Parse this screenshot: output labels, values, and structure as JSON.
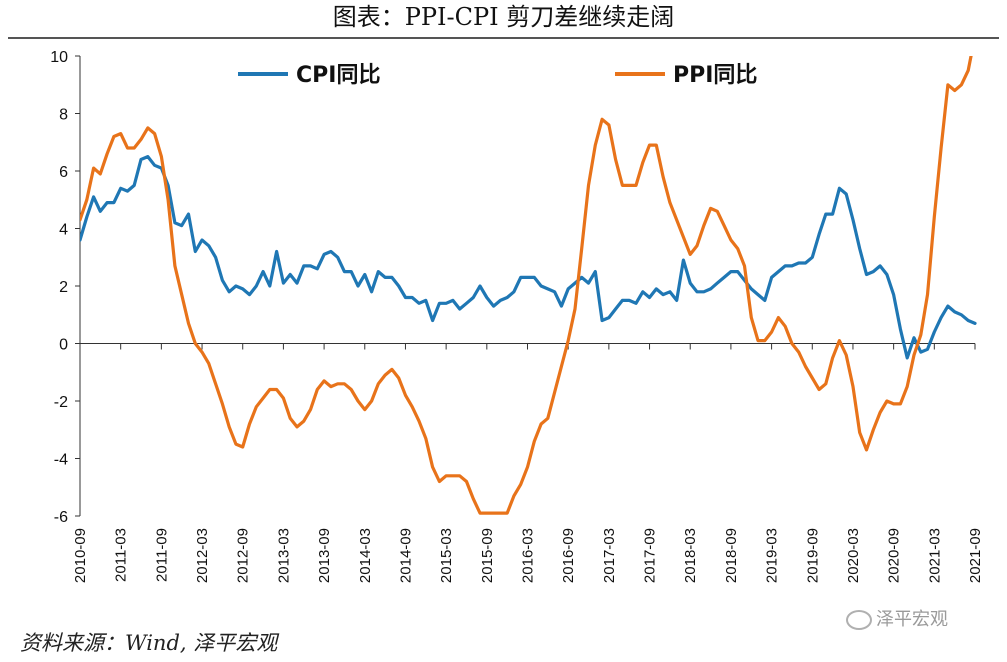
{
  "header": {
    "title": "图表：PPI-CPI 剪刀差继续走阔"
  },
  "footer": {
    "source": "资料来源：Wind, 泽平宏观",
    "watermark": "泽平宏观"
  },
  "chart_data": {
    "type": "line",
    "title": "图表：PPI-CPI 剪刀差继续走阔",
    "ylim": [
      -6,
      10
    ],
    "yticks": [
      "-6",
      "-4",
      "-2",
      "0",
      "2",
      "4",
      "6",
      "8",
      "10"
    ],
    "xlim": [
      "2010-09",
      "2021-09"
    ],
    "xticks": [
      "2010-09",
      "2011-03",
      "2011-09",
      "2012-03",
      "2012-09",
      "2013-03",
      "2013-09",
      "2014-03",
      "2014-09",
      "2015-03",
      "2015-09",
      "2016-03",
      "2016-09",
      "2017-03",
      "2017-09",
      "2018-03",
      "2018-09",
      "2019-03",
      "2019-09",
      "2020-03",
      "2020-09",
      "2021-03",
      "2021-09"
    ],
    "legend_position": "top",
    "series": [
      {
        "name": "CPI同比",
        "color": "#1f77b4",
        "points": [
          [
            "2010-09",
            3.6
          ],
          [
            "2010-10",
            4.4
          ],
          [
            "2010-11",
            5.1
          ],
          [
            "2010-12",
            4.6
          ],
          [
            "2011-01",
            4.9
          ],
          [
            "2011-02",
            4.9
          ],
          [
            "2011-03",
            5.4
          ],
          [
            "2011-04",
            5.3
          ],
          [
            "2011-05",
            5.5
          ],
          [
            "2011-06",
            6.4
          ],
          [
            "2011-07",
            6.5
          ],
          [
            "2011-08",
            6.2
          ],
          [
            "2011-09",
            6.1
          ],
          [
            "2011-10",
            5.5
          ],
          [
            "2011-11",
            4.2
          ],
          [
            "2011-12",
            4.1
          ],
          [
            "2012-01",
            4.5
          ],
          [
            "2012-02",
            3.2
          ],
          [
            "2012-03",
            3.6
          ],
          [
            "2012-04",
            3.4
          ],
          [
            "2012-05",
            3.0
          ],
          [
            "2012-06",
            2.2
          ],
          [
            "2012-07",
            1.8
          ],
          [
            "2012-08",
            2.0
          ],
          [
            "2012-09",
            1.9
          ],
          [
            "2012-10",
            1.7
          ],
          [
            "2012-11",
            2.0
          ],
          [
            "2012-12",
            2.5
          ],
          [
            "2013-01",
            2.0
          ],
          [
            "2013-02",
            3.2
          ],
          [
            "2013-03",
            2.1
          ],
          [
            "2013-04",
            2.4
          ],
          [
            "2013-05",
            2.1
          ],
          [
            "2013-06",
            2.7
          ],
          [
            "2013-07",
            2.7
          ],
          [
            "2013-08",
            2.6
          ],
          [
            "2013-09",
            3.1
          ],
          [
            "2013-10",
            3.2
          ],
          [
            "2013-11",
            3.0
          ],
          [
            "2013-12",
            2.5
          ],
          [
            "2014-01",
            2.5
          ],
          [
            "2014-02",
            2.0
          ],
          [
            "2014-03",
            2.4
          ],
          [
            "2014-04",
            1.8
          ],
          [
            "2014-05",
            2.5
          ],
          [
            "2014-06",
            2.3
          ],
          [
            "2014-07",
            2.3
          ],
          [
            "2014-08",
            2.0
          ],
          [
            "2014-09",
            1.6
          ],
          [
            "2014-10",
            1.6
          ],
          [
            "2014-11",
            1.4
          ],
          [
            "2014-12",
            1.5
          ],
          [
            "2015-01",
            0.8
          ],
          [
            "2015-02",
            1.4
          ],
          [
            "2015-03",
            1.4
          ],
          [
            "2015-04",
            1.5
          ],
          [
            "2015-05",
            1.2
          ],
          [
            "2015-06",
            1.4
          ],
          [
            "2015-07",
            1.6
          ],
          [
            "2015-08",
            2.0
          ],
          [
            "2015-09",
            1.6
          ],
          [
            "2015-10",
            1.3
          ],
          [
            "2015-11",
            1.5
          ],
          [
            "2015-12",
            1.6
          ],
          [
            "2016-01",
            1.8
          ],
          [
            "2016-02",
            2.3
          ],
          [
            "2016-03",
            2.3
          ],
          [
            "2016-04",
            2.3
          ],
          [
            "2016-05",
            2.0
          ],
          [
            "2016-06",
            1.9
          ],
          [
            "2016-07",
            1.8
          ],
          [
            "2016-08",
            1.3
          ],
          [
            "2016-09",
            1.9
          ],
          [
            "2016-10",
            2.1
          ],
          [
            "2016-11",
            2.3
          ],
          [
            "2016-12",
            2.1
          ],
          [
            "2017-01",
            2.5
          ],
          [
            "2017-02",
            0.8
          ],
          [
            "2017-03",
            0.9
          ],
          [
            "2017-04",
            1.2
          ],
          [
            "2017-05",
            1.5
          ],
          [
            "2017-06",
            1.5
          ],
          [
            "2017-07",
            1.4
          ],
          [
            "2017-08",
            1.8
          ],
          [
            "2017-09",
            1.6
          ],
          [
            "2017-10",
            1.9
          ],
          [
            "2017-11",
            1.7
          ],
          [
            "2017-12",
            1.8
          ],
          [
            "2018-01",
            1.5
          ],
          [
            "2018-02",
            2.9
          ],
          [
            "2018-03",
            2.1
          ],
          [
            "2018-04",
            1.8
          ],
          [
            "2018-05",
            1.8
          ],
          [
            "2018-06",
            1.9
          ],
          [
            "2018-07",
            2.1
          ],
          [
            "2018-08",
            2.3
          ],
          [
            "2018-09",
            2.5
          ],
          [
            "2018-10",
            2.5
          ],
          [
            "2018-11",
            2.2
          ],
          [
            "2018-12",
            1.9
          ],
          [
            "2019-01",
            1.7
          ],
          [
            "2019-02",
            1.5
          ],
          [
            "2019-03",
            2.3
          ],
          [
            "2019-04",
            2.5
          ],
          [
            "2019-05",
            2.7
          ],
          [
            "2019-06",
            2.7
          ],
          [
            "2019-07",
            2.8
          ],
          [
            "2019-08",
            2.8
          ],
          [
            "2019-09",
            3.0
          ],
          [
            "2019-10",
            3.8
          ],
          [
            "2019-11",
            4.5
          ],
          [
            "2019-12",
            4.5
          ],
          [
            "2020-01",
            5.4
          ],
          [
            "2020-02",
            5.2
          ],
          [
            "2020-03",
            4.3
          ],
          [
            "2020-04",
            3.3
          ],
          [
            "2020-05",
            2.4
          ],
          [
            "2020-06",
            2.5
          ],
          [
            "2020-07",
            2.7
          ],
          [
            "2020-08",
            2.4
          ],
          [
            "2020-09",
            1.7
          ],
          [
            "2020-10",
            0.5
          ],
          [
            "2020-11",
            -0.5
          ],
          [
            "2020-12",
            0.2
          ],
          [
            "2021-01",
            -0.3
          ],
          [
            "2021-02",
            -0.2
          ],
          [
            "2021-03",
            0.4
          ],
          [
            "2021-04",
            0.9
          ],
          [
            "2021-05",
            1.3
          ],
          [
            "2021-06",
            1.1
          ],
          [
            "2021-07",
            1.0
          ],
          [
            "2021-08",
            0.8
          ],
          [
            "2021-09",
            0.7
          ]
        ]
      },
      {
        "name": "PPI同比",
        "color": "#e8731a",
        "points": [
          [
            "2010-09",
            4.3
          ],
          [
            "2010-10",
            5.0
          ],
          [
            "2010-11",
            6.1
          ],
          [
            "2010-12",
            5.9
          ],
          [
            "2011-01",
            6.6
          ],
          [
            "2011-02",
            7.2
          ],
          [
            "2011-03",
            7.3
          ],
          [
            "2011-04",
            6.8
          ],
          [
            "2011-05",
            6.8
          ],
          [
            "2011-06",
            7.1
          ],
          [
            "2011-07",
            7.5
          ],
          [
            "2011-08",
            7.3
          ],
          [
            "2011-09",
            6.5
          ],
          [
            "2011-10",
            5.0
          ],
          [
            "2011-11",
            2.7
          ],
          [
            "2011-12",
            1.7
          ],
          [
            "2012-01",
            0.7
          ],
          [
            "2012-02",
            0.0
          ],
          [
            "2012-03",
            -0.3
          ],
          [
            "2012-04",
            -0.7
          ],
          [
            "2012-05",
            -1.4
          ],
          [
            "2012-06",
            -2.1
          ],
          [
            "2012-07",
            -2.9
          ],
          [
            "2012-08",
            -3.5
          ],
          [
            "2012-09",
            -3.6
          ],
          [
            "2012-10",
            -2.8
          ],
          [
            "2012-11",
            -2.2
          ],
          [
            "2012-12",
            -1.9
          ],
          [
            "2013-01",
            -1.6
          ],
          [
            "2013-02",
            -1.6
          ],
          [
            "2013-03",
            -1.9
          ],
          [
            "2013-04",
            -2.6
          ],
          [
            "2013-05",
            -2.9
          ],
          [
            "2013-06",
            -2.7
          ],
          [
            "2013-07",
            -2.3
          ],
          [
            "2013-08",
            -1.6
          ],
          [
            "2013-09",
            -1.3
          ],
          [
            "2013-10",
            -1.5
          ],
          [
            "2013-11",
            -1.4
          ],
          [
            "2013-12",
            -1.4
          ],
          [
            "2014-01",
            -1.6
          ],
          [
            "2014-02",
            -2.0
          ],
          [
            "2014-03",
            -2.3
          ],
          [
            "2014-04",
            -2.0
          ],
          [
            "2014-05",
            -1.4
          ],
          [
            "2014-06",
            -1.1
          ],
          [
            "2014-07",
            -0.9
          ],
          [
            "2014-08",
            -1.2
          ],
          [
            "2014-09",
            -1.8
          ],
          [
            "2014-10",
            -2.2
          ],
          [
            "2014-11",
            -2.7
          ],
          [
            "2014-12",
            -3.3
          ],
          [
            "2015-01",
            -4.3
          ],
          [
            "2015-02",
            -4.8
          ],
          [
            "2015-03",
            -4.6
          ],
          [
            "2015-04",
            -4.6
          ],
          [
            "2015-05",
            -4.6
          ],
          [
            "2015-06",
            -4.8
          ],
          [
            "2015-07",
            -5.4
          ],
          [
            "2015-08",
            -5.9
          ],
          [
            "2015-09",
            -5.9
          ],
          [
            "2015-10",
            -5.9
          ],
          [
            "2015-11",
            -5.9
          ],
          [
            "2015-12",
            -5.9
          ],
          [
            "2016-01",
            -5.3
          ],
          [
            "2016-02",
            -4.9
          ],
          [
            "2016-03",
            -4.3
          ],
          [
            "2016-04",
            -3.4
          ],
          [
            "2016-05",
            -2.8
          ],
          [
            "2016-06",
            -2.6
          ],
          [
            "2016-07",
            -1.7
          ],
          [
            "2016-08",
            -0.8
          ],
          [
            "2016-09",
            0.1
          ],
          [
            "2016-10",
            1.2
          ],
          [
            "2016-11",
            3.3
          ],
          [
            "2016-12",
            5.5
          ],
          [
            "2017-01",
            6.9
          ],
          [
            "2017-02",
            7.8
          ],
          [
            "2017-03",
            7.6
          ],
          [
            "2017-04",
            6.4
          ],
          [
            "2017-05",
            5.5
          ],
          [
            "2017-06",
            5.5
          ],
          [
            "2017-07",
            5.5
          ],
          [
            "2017-08",
            6.3
          ],
          [
            "2017-09",
            6.9
          ],
          [
            "2017-10",
            6.9
          ],
          [
            "2017-11",
            5.8
          ],
          [
            "2017-12",
            4.9
          ],
          [
            "2018-01",
            4.3
          ],
          [
            "2018-02",
            3.7
          ],
          [
            "2018-03",
            3.1
          ],
          [
            "2018-04",
            3.4
          ],
          [
            "2018-05",
            4.1
          ],
          [
            "2018-06",
            4.7
          ],
          [
            "2018-07",
            4.6
          ],
          [
            "2018-08",
            4.1
          ],
          [
            "2018-09",
            3.6
          ],
          [
            "2018-10",
            3.3
          ],
          [
            "2018-11",
            2.7
          ],
          [
            "2018-12",
            0.9
          ],
          [
            "2019-01",
            0.1
          ],
          [
            "2019-02",
            0.1
          ],
          [
            "2019-03",
            0.4
          ],
          [
            "2019-04",
            0.9
          ],
          [
            "2019-05",
            0.6
          ],
          [
            "2019-06",
            0.0
          ],
          [
            "2019-07",
            -0.3
          ],
          [
            "2019-08",
            -0.8
          ],
          [
            "2019-09",
            -1.2
          ],
          [
            "2019-10",
            -1.6
          ],
          [
            "2019-11",
            -1.4
          ],
          [
            "2019-12",
            -0.5
          ],
          [
            "2020-01",
            0.1
          ],
          [
            "2020-02",
            -0.4
          ],
          [
            "2020-03",
            -1.5
          ],
          [
            "2020-04",
            -3.1
          ],
          [
            "2020-05",
            -3.7
          ],
          [
            "2020-06",
            -3.0
          ],
          [
            "2020-07",
            -2.4
          ],
          [
            "2020-08",
            -2.0
          ],
          [
            "2020-09",
            -2.1
          ],
          [
            "2020-10",
            -2.1
          ],
          [
            "2020-11",
            -1.5
          ],
          [
            "2020-12",
            -0.4
          ],
          [
            "2021-01",
            0.3
          ],
          [
            "2021-02",
            1.7
          ],
          [
            "2021-03",
            4.4
          ],
          [
            "2021-04",
            6.8
          ],
          [
            "2021-05",
            9.0
          ],
          [
            "2021-06",
            8.8
          ],
          [
            "2021-07",
            9.0
          ],
          [
            "2021-08",
            9.5
          ],
          [
            "2021-09",
            10.7
          ]
        ]
      }
    ]
  }
}
